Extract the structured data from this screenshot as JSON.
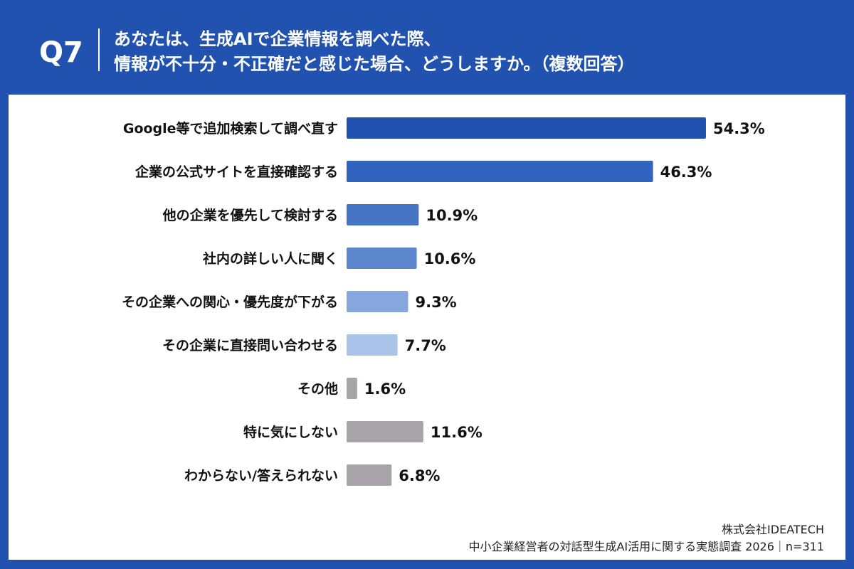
{
  "header": {
    "question_number": "Q7",
    "question_line1": "あなたは、生成AIで企業情報を調べた際、",
    "question_line2": "情報が不十分・不正確だと感じた場合、どうしますか。（複数回答）"
  },
  "colors": {
    "background": "#2152b0",
    "panel": "#ffffff"
  },
  "chart_data": {
    "type": "bar",
    "orientation": "horizontal",
    "categories": [
      "Google等で追加検索して調べ直す",
      "企業の公式サイトを直接確認する",
      "他の企業を優先して検討する",
      "社内の詳しい人に聞く",
      "その企業への関心・優先度が下がる",
      "その企業に直接問い合わせる",
      "その他",
      "特に気にしない",
      "わからない/答えられない"
    ],
    "values": [
      54.3,
      46.3,
      10.9,
      10.6,
      9.3,
      7.7,
      1.6,
      11.6,
      6.8
    ],
    "value_labels": [
      "54.3%",
      "46.3%",
      "10.9%",
      "10.6%",
      "9.3%",
      "7.7%",
      "1.6%",
      "11.6%",
      "6.8%"
    ],
    "bar_colors": [
      "#2152b0",
      "#3263be",
      "#4775c6",
      "#5b85cc",
      "#86a7dd",
      "#aac3e9",
      "#a7a3a8",
      "#a7a3a8",
      "#a7a3a8"
    ],
    "xlim": [
      0,
      100
    ],
    "grid": false,
    "legend": "none"
  },
  "footer": {
    "company": "株式会社IDEATECH",
    "survey": "中小企業経営者の対話型生成AI活用に関する実態調査 2026｜n=311"
  }
}
